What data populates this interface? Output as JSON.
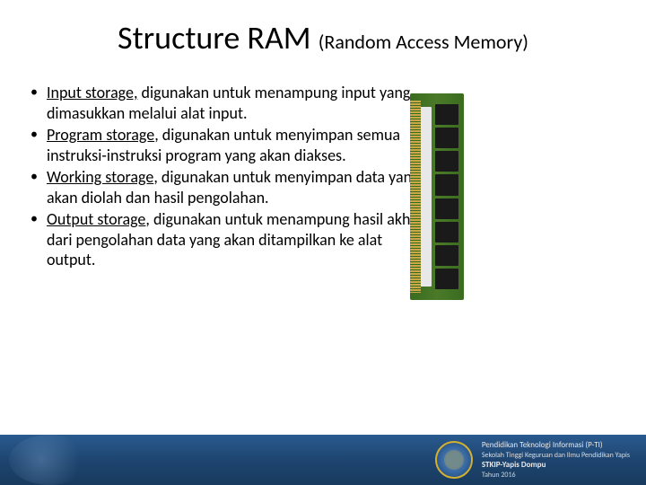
{
  "title": {
    "main": "Structure RAM ",
    "sub": "(Random Access Memory)"
  },
  "bullets": [
    {
      "lead": "Input storage,",
      "rest": " digunakan untuk menampung input yang dimasukkan melalui alat input."
    },
    {
      "lead": "Program storage",
      "rest": ", digunakan untuk menyimpan semua instruksi-instruksi program yang akan diakses."
    },
    {
      "lead": "Working storage",
      "rest": ", digunakan untuk menyimpan data yang akan diolah dan hasil pengolahan."
    },
    {
      "lead": "Output storage",
      "rest": ", digunakan untuk menampung hasil akhir dari pengolahan data yang akan ditampilkan ke alat output."
    }
  ],
  "footer": {
    "line1": "Pendidikan Teknologi Informasi (P-TI)",
    "line2": "Sekolah Tinggi Keguruan dan Ilmu Pendidikan Yapis",
    "line3": "STKIP-Yapis Dompu",
    "line4": "Tahun 2016"
  },
  "colors": {
    "text": "#000000",
    "footer_bg_top": "#2a5a8f",
    "footer_bg_bottom": "#183a5e",
    "footer_text": "#e8e8e8",
    "logo_accent": "#d4b030",
    "pcb_green": "#3a6b1f"
  }
}
